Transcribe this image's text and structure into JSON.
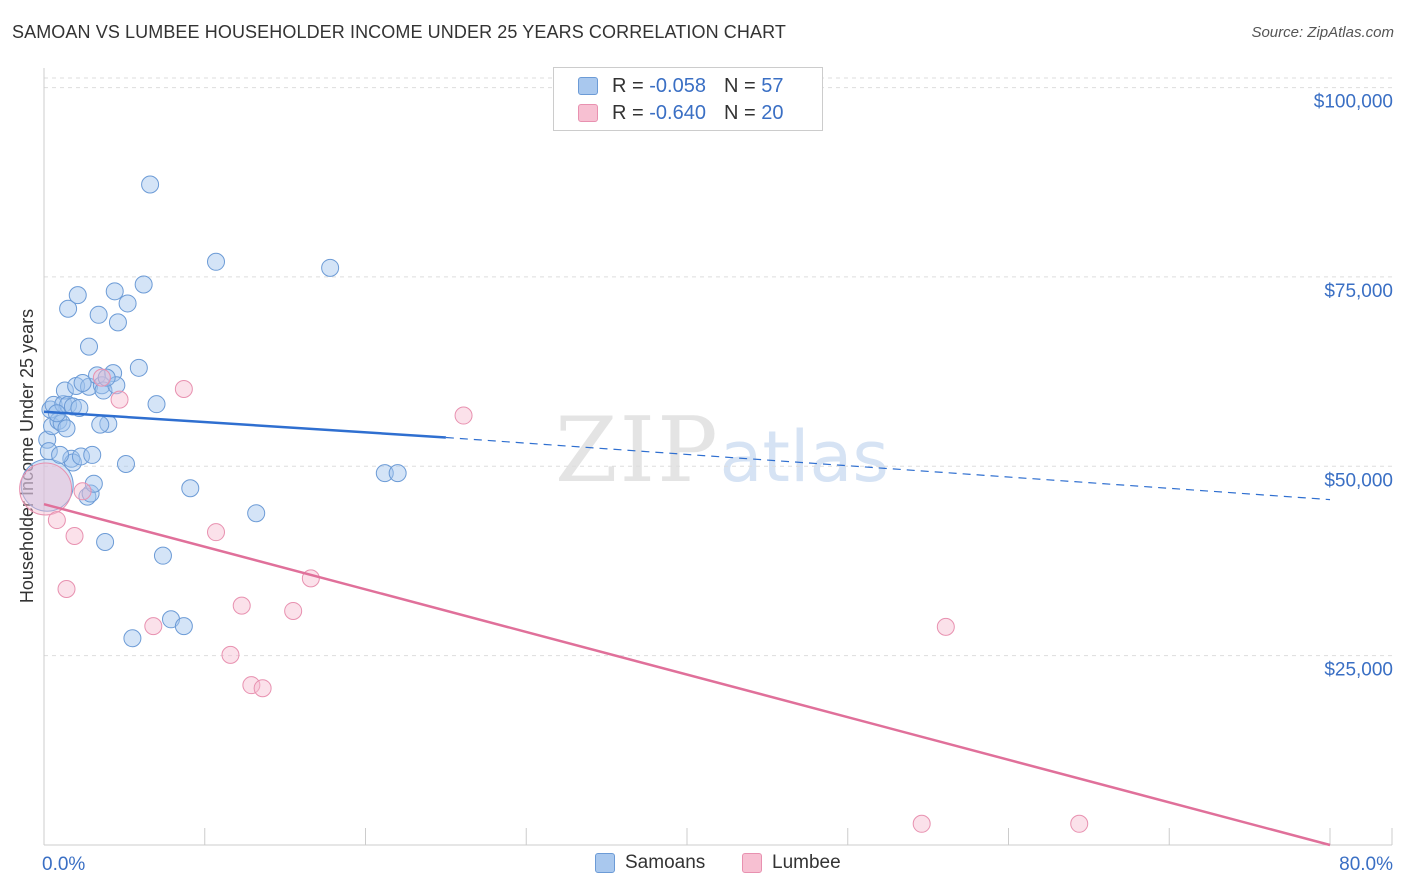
{
  "title": "SAMOAN VS LUMBEE HOUSEHOLDER INCOME UNDER 25 YEARS CORRELATION CHART",
  "source": "Source: ZipAtlas.com",
  "watermark": {
    "zip": "ZIP",
    "atlas": "atlas"
  },
  "legend": {
    "rows": [
      {
        "r_label": "R =",
        "r_value": "-0.058",
        "n_label": "N =",
        "n_value": "57",
        "color": "#a9c8ee",
        "border": "#6c9bd6"
      },
      {
        "r_label": "R =",
        "r_value": "-0.640",
        "n_label": "N =",
        "n_value": "20",
        "color": "#f7c0d2",
        "border": "#e891b0"
      }
    ]
  },
  "bottom_legend": [
    {
      "label": "Samoans",
      "color": "#a9c8ee",
      "border": "#6c9bd6"
    },
    {
      "label": "Lumbee",
      "color": "#f7c0d2",
      "border": "#e891b0"
    }
  ],
  "chart_data": {
    "type": "scatter",
    "title": "SAMOAN VS LUMBEE HOUSEHOLDER INCOME UNDER 25 YEARS CORRELATION CHART",
    "xlabel": "",
    "ylabel": "Householder Income Under 25 years",
    "xlim": [
      0,
      80
    ],
    "ylim": [
      0,
      101000
    ],
    "x_tick_labels": [
      "0.0%",
      "80.0%"
    ],
    "y_ticks": [
      25000,
      50000,
      75000,
      100000
    ],
    "y_tick_labels": [
      "$25,000",
      "$50,000",
      "$75,000",
      "$100,000"
    ],
    "grid": true,
    "series": [
      {
        "name": "Samoans",
        "color": "#6c9bd6",
        "fill": "rgba(160,195,238,0.45)",
        "trend": {
          "x0": 0,
          "y0": 57200,
          "x_solid_end": 25,
          "y_solid_end": 53800,
          "x1": 80,
          "y1": 45600
        },
        "points": [
          {
            "x": 0.2,
            "y": 47500,
            "big": true
          },
          {
            "x": 0.2,
            "y": 53500
          },
          {
            "x": 0.5,
            "y": 55300
          },
          {
            "x": 0.4,
            "y": 57500
          },
          {
            "x": 0.6,
            "y": 58100
          },
          {
            "x": 0.9,
            "y": 56000
          },
          {
            "x": 1.1,
            "y": 55700
          },
          {
            "x": 1.2,
            "y": 58200
          },
          {
            "x": 1.3,
            "y": 60000
          },
          {
            "x": 1.5,
            "y": 58100
          },
          {
            "x": 1.8,
            "y": 57900
          },
          {
            "x": 2.0,
            "y": 60600
          },
          {
            "x": 1.7,
            "y": 51000
          },
          {
            "x": 1.8,
            "y": 50500
          },
          {
            "x": 2.3,
            "y": 51300
          },
          {
            "x": 1.5,
            "y": 70800
          },
          {
            "x": 2.1,
            "y": 72600
          },
          {
            "x": 2.8,
            "y": 60500
          },
          {
            "x": 2.7,
            "y": 46000
          },
          {
            "x": 2.9,
            "y": 46400
          },
          {
            "x": 3.1,
            "y": 47700
          },
          {
            "x": 3.0,
            "y": 51500
          },
          {
            "x": 2.8,
            "y": 65800
          },
          {
            "x": 3.3,
            "y": 62000
          },
          {
            "x": 3.4,
            "y": 70000
          },
          {
            "x": 3.6,
            "y": 60700
          },
          {
            "x": 3.7,
            "y": 60000
          },
          {
            "x": 3.8,
            "y": 40000
          },
          {
            "x": 4.0,
            "y": 55600
          },
          {
            "x": 4.3,
            "y": 62300
          },
          {
            "x": 4.5,
            "y": 60700
          },
          {
            "x": 4.4,
            "y": 73100
          },
          {
            "x": 4.6,
            "y": 69000
          },
          {
            "x": 5.2,
            "y": 71500
          },
          {
            "x": 5.1,
            "y": 50300
          },
          {
            "x": 5.5,
            "y": 27300
          },
          {
            "x": 5.9,
            "y": 63000
          },
          {
            "x": 6.2,
            "y": 74000
          },
          {
            "x": 6.6,
            "y": 87200
          },
          {
            "x": 7.0,
            "y": 58200
          },
          {
            "x": 7.4,
            "y": 38200
          },
          {
            "x": 7.9,
            "y": 29800
          },
          {
            "x": 8.7,
            "y": 28900
          },
          {
            "x": 9.1,
            "y": 47100
          },
          {
            "x": 10.7,
            "y": 77000
          },
          {
            "x": 13.2,
            "y": 43800
          },
          {
            "x": 17.8,
            "y": 76200
          },
          {
            "x": 21.2,
            "y": 49100
          },
          {
            "x": 22.0,
            "y": 49100
          },
          {
            "x": 0.3,
            "y": 52000
          },
          {
            "x": 1.0,
            "y": 51500
          },
          {
            "x": 2.4,
            "y": 61000
          },
          {
            "x": 3.9,
            "y": 61700
          },
          {
            "x": 2.2,
            "y": 57700
          },
          {
            "x": 0.8,
            "y": 57000
          },
          {
            "x": 3.5,
            "y": 55500
          },
          {
            "x": 1.4,
            "y": 55000
          }
        ]
      },
      {
        "name": "Lumbee",
        "color": "#e891b0",
        "fill": "rgba(247,188,208,0.45)",
        "trend": {
          "x0": 0,
          "y0": 45000,
          "x1": 80,
          "y1": 0
        },
        "points": [
          {
            "x": 0.1,
            "y": 47000,
            "big": true
          },
          {
            "x": 0.8,
            "y": 42900
          },
          {
            "x": 1.4,
            "y": 33800
          },
          {
            "x": 1.9,
            "y": 40800
          },
          {
            "x": 2.4,
            "y": 46700
          },
          {
            "x": 4.7,
            "y": 58800
          },
          {
            "x": 6.8,
            "y": 28900
          },
          {
            "x": 8.7,
            "y": 60200
          },
          {
            "x": 10.7,
            "y": 41300
          },
          {
            "x": 11.6,
            "y": 25100
          },
          {
            "x": 12.3,
            "y": 31600
          },
          {
            "x": 12.9,
            "y": 21100
          },
          {
            "x": 13.6,
            "y": 20700
          },
          {
            "x": 15.5,
            "y": 30900
          },
          {
            "x": 16.6,
            "y": 35200
          },
          {
            "x": 26.1,
            "y": 56700
          },
          {
            "x": 56.1,
            "y": 28800
          },
          {
            "x": 54.6,
            "y": 2800
          },
          {
            "x": 64.4,
            "y": 2800
          },
          {
            "x": 3.6,
            "y": 61700
          }
        ]
      }
    ]
  }
}
